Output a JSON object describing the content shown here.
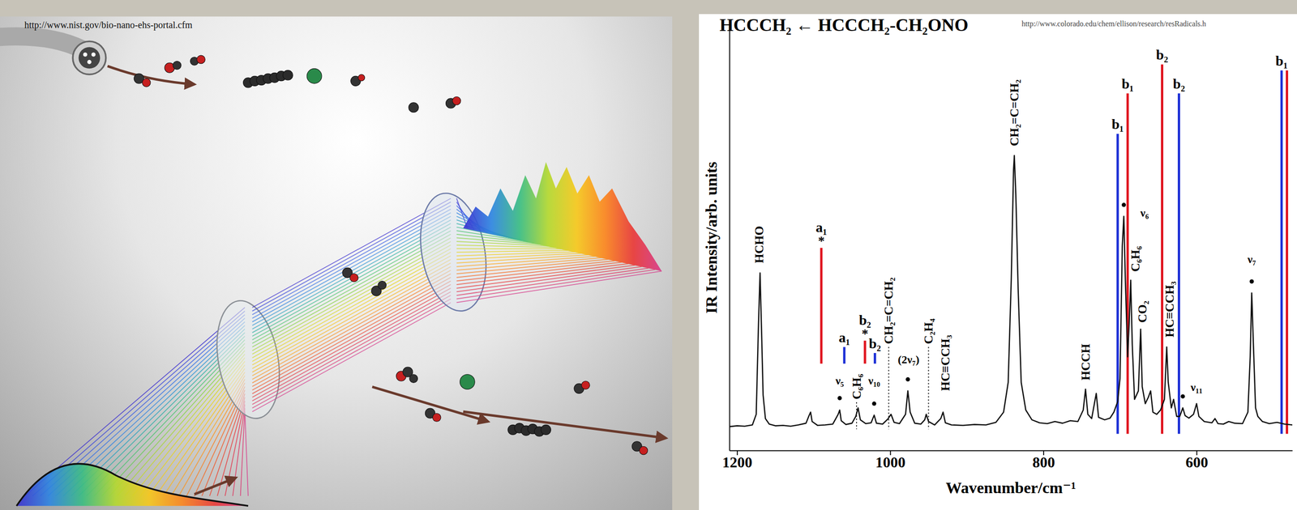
{
  "chart_data": {
    "type": "line",
    "title": "HCCCH₂ ← HCCCH₂-CH₂ONO",
    "source": "http://www.colorado.edu/chem/ellison/research/resRadicals.h",
    "x_label": "Wavenumber/cm⁻¹",
    "y_label": "IR Intensity/arb. units",
    "xlim": [
      1210,
      475
    ],
    "xticks": [
      1200,
      1000,
      800,
      600
    ],
    "ylim": [
      0,
      100
    ],
    "tick_labels": "x",
    "grid": false,
    "color": "#111111",
    "x": [
      1210,
      1200,
      1190,
      1180,
      1175,
      1172,
      1170,
      1168,
      1166,
      1163,
      1158,
      1150,
      1140,
      1130,
      1120,
      1110,
      1106,
      1104,
      1102,
      1095,
      1085,
      1075,
      1068,
      1066,
      1064,
      1058,
      1050,
      1045,
      1042,
      1039,
      1032,
      1025,
      1021,
      1018,
      1010,
      1003,
      999,
      995,
      988,
      980,
      977,
      974,
      968,
      960,
      955,
      953,
      950,
      942,
      934,
      931,
      928,
      920,
      905,
      890,
      875,
      862,
      852,
      846,
      842,
      839,
      838,
      836,
      833,
      829,
      823,
      815,
      805,
      795,
      785,
      775,
      765,
      755,
      748,
      745,
      742,
      737,
      731,
      728,
      720,
      713,
      708,
      703,
      700,
      697,
      695,
      693,
      690,
      688,
      686,
      684,
      681,
      676,
      673,
      671,
      667,
      663,
      660,
      657,
      652,
      647,
      642,
      639,
      637,
      633,
      630,
      626,
      622,
      618,
      615,
      610,
      604,
      600,
      597,
      590,
      580,
      576,
      572,
      565,
      558,
      550,
      540,
      533,
      530,
      528,
      526,
      523,
      520,
      514,
      505,
      495,
      485,
      475
    ],
    "values": [
      5.6,
      5.8,
      5.7,
      6.0,
      8.5,
      30,
      41.7,
      28,
      13,
      7.5,
      6.2,
      5.8,
      5.9,
      5.7,
      6.0,
      6.4,
      8.2,
      9.0,
      6.8,
      5.9,
      6.0,
      6.2,
      8.5,
      9.5,
      7.0,
      6.1,
      6.4,
      8.0,
      10.0,
      7.2,
      6.3,
      6.5,
      8.3,
      6.4,
      6.2,
      7.4,
      8.5,
      6.6,
      6.3,
      8.5,
      14.0,
      9.0,
      6.4,
      6.2,
      7.2,
      8.5,
      6.8,
      6.0,
      7.5,
      9.0,
      6.5,
      6.0,
      5.9,
      6.1,
      6.0,
      6.6,
      9.0,
      16,
      40,
      66,
      69.3,
      60,
      38,
      16,
      9.5,
      7.2,
      6.5,
      6.3,
      6.8,
      6.4,
      7.0,
      6.8,
      9.5,
      14.4,
      8.5,
      7.5,
      13.4,
      7.8,
      7.2,
      7.6,
      9.0,
      11.5,
      16.9,
      48,
      55,
      40,
      22,
      30,
      40,
      25,
      12,
      14,
      28.5,
      15,
      11,
      12.5,
      14,
      9,
      8.5,
      9.5,
      12,
      24.3,
      16,
      10,
      12,
      8,
      8.0,
      10.0,
      8.2,
      7.6,
      8.5,
      11,
      8,
      6.8,
      6.5,
      7.5,
      6.3,
      6.2,
      6.8,
      6.4,
      6.3,
      9.0,
      22,
      37,
      26,
      10,
      8,
      6.8,
      6.3,
      6.6,
      6.2,
      6.0
    ],
    "sticks": [
      {
        "x": 1090,
        "low": 20.4,
        "high": 47.6,
        "color": "#e0141e",
        "label": "a₁",
        "note": "*"
      },
      {
        "x": 1060,
        "low": 20.4,
        "high": 24.3,
        "color": "#1c2fd6",
        "label": "a₁"
      },
      {
        "x": 1033,
        "low": 20.4,
        "high": 25.8,
        "color": "#e0141e",
        "label": "b₂",
        "note": "*"
      },
      {
        "x": 1020,
        "low": 20.4,
        "high": 22.9,
        "color": "#1c2fd6",
        "label": "b₂"
      },
      {
        "x": 703,
        "low": 3.9,
        "high": 74.4,
        "color": "#1c2fd6",
        "label": "b₁"
      },
      {
        "x": 690,
        "low": 3.9,
        "high": 83.9,
        "color": "#e0141e",
        "label": "b₁"
      },
      {
        "x": 645,
        "low": 3.9,
        "high": 90.7,
        "color": "#e0141e",
        "label": "b₂"
      },
      {
        "x": 623,
        "low": 3.9,
        "high": 83.9,
        "color": "#1c2fd6",
        "label": "b₂"
      },
      {
        "x": 489,
        "low": 3.9,
        "high": 89.3,
        "color": "#1c2fd6",
        "label": "b₁"
      },
      {
        "x": 482,
        "low": 3.9,
        "high": 89.3,
        "color": "#e0141e"
      }
    ],
    "peaks": {
      "x": [
        1066,
        1021,
        977,
        695,
        618,
        528
      ],
      "values": [
        12.3,
        11.0,
        16.7,
        57.7,
        12.7,
        39.7
      ],
      "marker": "dot"
    },
    "labels": [
      {
        "text": "HCHO",
        "x": 1171,
        "y": 44
      },
      {
        "text": "C₆H₆",
        "x": 1044,
        "y": 12,
        "line_style": "dotted",
        "line_to": 5
      },
      {
        "text": "CH₂=C=CH₂",
        "x": 1002,
        "y": 25,
        "line_style": "dotted",
        "line_to": 5
      },
      {
        "text": "C₂H₄",
        "x": 950,
        "y": 25,
        "line_style": "dotted",
        "line_to": 5
      },
      {
        "text": "HC≡CCH₃",
        "x": 928,
        "y": 14
      },
      {
        "text": "CH₂=C=CH₂",
        "x": 838,
        "y": 71.5
      },
      {
        "text": "HCCH",
        "x": 745,
        "y": 16.5
      },
      {
        "text": "C₆H₆",
        "x": 680,
        "y": 42
      },
      {
        "text": "CO₂",
        "x": 671,
        "y": 30
      },
      {
        "text": "HC≡CCH₃",
        "x": 635,
        "y": 26.6
      }
    ],
    "annotations": [
      {
        "text": "ν₅",
        "x": 1066,
        "y": 15.5
      },
      {
        "text": "ν₁₀",
        "x": 1021,
        "y": 15.5
      },
      {
        "text": "(2ν₇)",
        "x": 976,
        "y": 20.5
      },
      {
        "text": "ν₆",
        "x": 668,
        "y": 55
      },
      {
        "text": "ν₁₁",
        "x": 600,
        "y": 14
      },
      {
        "text": "ν₇",
        "x": 528,
        "y": 44
      }
    ]
  },
  "illustration": {
    "credit": "http://www.nist.gov/bio-nano-ehs-portal.cfm"
  }
}
